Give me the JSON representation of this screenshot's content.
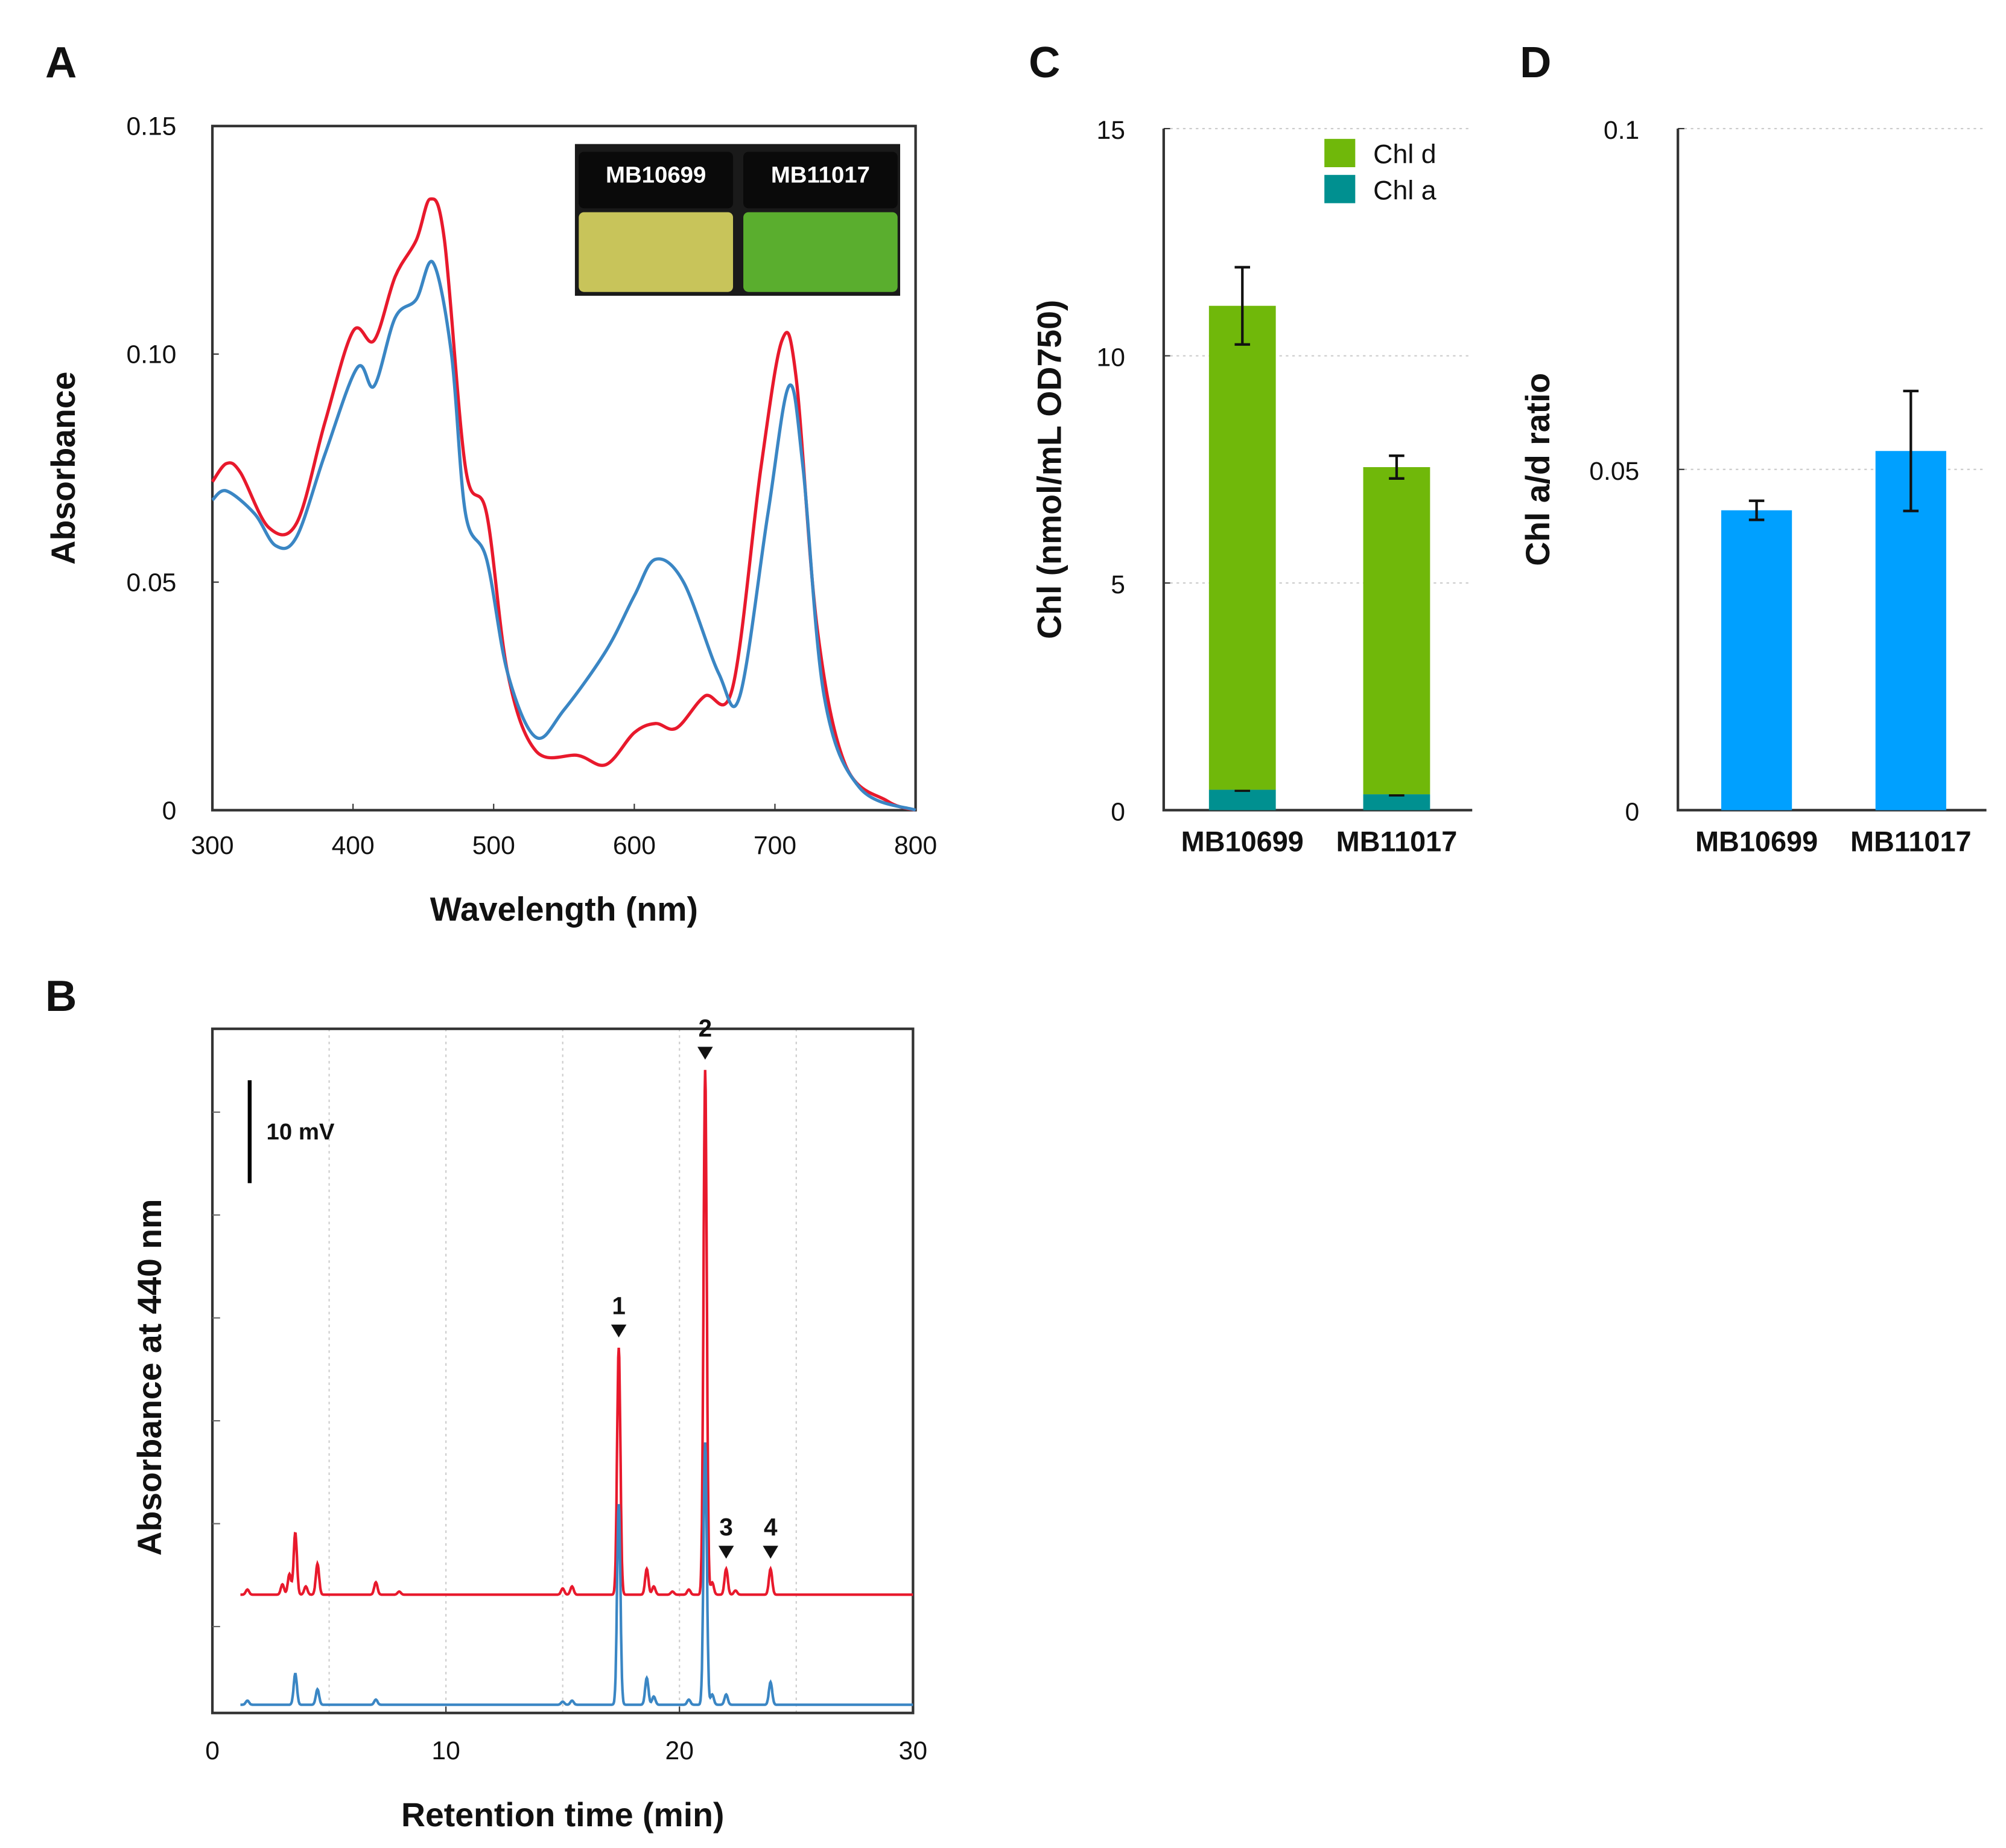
{
  "chart_data": [
    {
      "panel": "A",
      "type": "line",
      "xlabel": "Wavelength (nm)",
      "ylabel": "Absorbance",
      "xlim": [
        300,
        800
      ],
      "ylim": [
        0,
        0.15
      ],
      "xticks": [
        "300",
        "400",
        "500",
        "600",
        "700",
        "800"
      ],
      "yticks": [
        "0",
        "0.05",
        "0.10",
        "0.15"
      ],
      "inset": {
        "labels": [
          "MB10699",
          "MB11017"
        ],
        "colors": [
          "#c8c45a",
          "#5aae2e"
        ]
      },
      "series": [
        {
          "color": "#e8192c",
          "x": [
            300,
            310,
            320,
            340,
            360,
            380,
            400,
            415,
            430,
            445,
            455,
            465,
            480,
            495,
            510,
            530,
            560,
            580,
            600,
            615,
            630,
            650,
            670,
            690,
            705,
            715,
            730,
            750,
            780,
            800
          ],
          "y": [
            0.072,
            0.076,
            0.074,
            0.062,
            0.063,
            0.085,
            0.105,
            0.103,
            0.117,
            0.125,
            0.134,
            0.125,
            0.075,
            0.065,
            0.03,
            0.013,
            0.012,
            0.01,
            0.017,
            0.019,
            0.018,
            0.025,
            0.027,
            0.075,
            0.103,
            0.095,
            0.04,
            0.01,
            0.002,
            0.0
          ]
        },
        {
          "color": "#3a86c4",
          "x": [
            300,
            310,
            330,
            345,
            360,
            380,
            403,
            415,
            430,
            445,
            457,
            470,
            480,
            495,
            510,
            530,
            550,
            580,
            600,
            615,
            635,
            660,
            675,
            695,
            710,
            720,
            735,
            760,
            800
          ],
          "y": [
            0.068,
            0.07,
            0.065,
            0.058,
            0.06,
            0.078,
            0.097,
            0.093,
            0.108,
            0.112,
            0.12,
            0.1,
            0.065,
            0.055,
            0.03,
            0.016,
            0.022,
            0.035,
            0.047,
            0.055,
            0.05,
            0.03,
            0.025,
            0.065,
            0.093,
            0.075,
            0.025,
            0.005,
            0.0
          ]
        }
      ]
    },
    {
      "panel": "B",
      "type": "line",
      "xlabel": "Retention time (min)",
      "ylabel": "Absorbance at 440 nm",
      "xlim": [
        0,
        30
      ],
      "ylim_mV": [
        0,
        66.5
      ],
      "xticks": [
        "0",
        "10",
        "20",
        "30"
      ],
      "scale_bar": "10 mV",
      "scale_bar_mV": 10,
      "peak_labels": [
        {
          "label": "1",
          "t": 17.4
        },
        {
          "label": "2",
          "t": 21.1
        },
        {
          "label": "3",
          "t": 22.0
        },
        {
          "label": "4",
          "t": 23.9
        }
      ],
      "series": [
        {
          "color": "#e8192c",
          "baseline_mV": 11.5,
          "peaks": [
            [
              1.5,
              0.5
            ],
            [
              3.0,
              1
            ],
            [
              3.3,
              2
            ],
            [
              3.55,
              6
            ],
            [
              4.0,
              0.8
            ],
            [
              4.5,
              3
            ],
            [
              7.0,
              1.2
            ],
            [
              8.0,
              0.3
            ],
            [
              15.0,
              0.6
            ],
            [
              15.4,
              0.8
            ],
            [
              17.4,
              24
            ],
            [
              18.6,
              2.5
            ],
            [
              18.9,
              0.8
            ],
            [
              19.7,
              0.3
            ],
            [
              20.4,
              0.5
            ],
            [
              21.1,
              51
            ],
            [
              21.4,
              1.2
            ],
            [
              22.0,
              2.5
            ],
            [
              22.4,
              0.4
            ],
            [
              23.9,
              2.5
            ]
          ]
        },
        {
          "color": "#3a86c4",
          "baseline_mV": 0.8,
          "peaks": [
            [
              1.5,
              0.4
            ],
            [
              3.55,
              3
            ],
            [
              4.5,
              1.5
            ],
            [
              7.0,
              0.5
            ],
            [
              15.0,
              0.3
            ],
            [
              15.4,
              0.4
            ],
            [
              17.4,
              19.5
            ],
            [
              18.6,
              2.6
            ],
            [
              18.9,
              0.8
            ],
            [
              20.4,
              0.5
            ],
            [
              21.1,
              25.5
            ],
            [
              21.4,
              1
            ],
            [
              22.0,
              1
            ],
            [
              23.9,
              2.2
            ]
          ]
        }
      ]
    },
    {
      "panel": "C",
      "type": "bar",
      "stacked": true,
      "ylabel": "Chl (nmol/mL OD750)",
      "ylim": [
        0,
        15
      ],
      "yticks": [
        "0",
        "5",
        "10",
        "15"
      ],
      "categories": [
        "MB10699",
        "MB11017"
      ],
      "legend": "top-right",
      "series": [
        {
          "name": "Chl d",
          "color": "#70b80a",
          "values": [
            10.65,
            7.2
          ],
          "errors": [
            0.85,
            0.25
          ]
        },
        {
          "name": "Chl a",
          "color": "#009090",
          "values": [
            0.45,
            0.35
          ],
          "errors": [
            0.02,
            0.02
          ]
        }
      ]
    },
    {
      "panel": "D",
      "type": "bar",
      "ylabel": "Chl a/d ratio",
      "ylim": [
        0,
        0.1
      ],
      "yticks": [
        "0",
        "0.05",
        "0.1"
      ],
      "categories": [
        "MB10699",
        "MB11017"
      ],
      "series": [
        {
          "name": "Chl a/d ratio",
          "color": "#00a0ff",
          "values": [
            0.044,
            0.0527
          ],
          "errors": [
            0.0014,
            0.0088
          ]
        }
      ]
    }
  ]
}
